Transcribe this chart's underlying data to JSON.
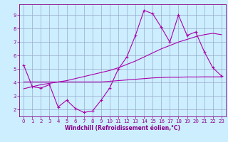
{
  "x": [
    0,
    1,
    2,
    3,
    4,
    5,
    6,
    7,
    8,
    9,
    10,
    11,
    12,
    13,
    14,
    15,
    16,
    17,
    18,
    19,
    20,
    21,
    22,
    23
  ],
  "y_main": [
    5.3,
    3.7,
    3.6,
    3.85,
    2.2,
    2.7,
    2.1,
    1.8,
    1.9,
    2.7,
    3.6,
    5.0,
    5.9,
    7.5,
    9.35,
    9.1,
    8.1,
    7.0,
    9.0,
    7.5,
    7.75,
    6.3,
    5.1,
    4.5
  ],
  "y_trend": [
    3.55,
    3.7,
    3.85,
    3.95,
    4.05,
    4.15,
    4.3,
    4.45,
    4.6,
    4.75,
    4.9,
    5.1,
    5.35,
    5.6,
    5.9,
    6.2,
    6.5,
    6.75,
    7.0,
    7.2,
    7.4,
    7.55,
    7.65,
    7.55
  ],
  "y_flat": [
    4.05,
    4.05,
    4.05,
    4.05,
    4.05,
    4.05,
    4.05,
    4.05,
    4.05,
    4.05,
    4.1,
    4.15,
    4.2,
    4.25,
    4.3,
    4.35,
    4.38,
    4.4,
    4.4,
    4.42,
    4.42,
    4.43,
    4.43,
    4.43
  ],
  "color_main": "#aa00aa",
  "color_trend": "#aa00aa",
  "color_flat": "#aa00aa",
  "bg_color": "#cceeff",
  "grid_color": "#99aacc",
  "xlabel": "Windchill (Refroidissement éolien,°C)",
  "xlim_min": -0.5,
  "xlim_max": 23.5,
  "ylim_min": 1.5,
  "ylim_max": 9.8,
  "yticks": [
    2,
    3,
    4,
    5,
    6,
    7,
    8,
    9
  ],
  "xticks": [
    0,
    1,
    2,
    3,
    4,
    5,
    6,
    7,
    8,
    9,
    10,
    11,
    12,
    13,
    14,
    15,
    16,
    17,
    18,
    19,
    20,
    21,
    22,
    23
  ],
  "marker": "+",
  "markersize": 3.5,
  "linewidth": 0.8,
  "xlabel_color": "#880088",
  "tick_color": "#880088",
  "axis_color": "#880088",
  "tick_fontsize": 5.0,
  "xlabel_fontsize": 5.5
}
